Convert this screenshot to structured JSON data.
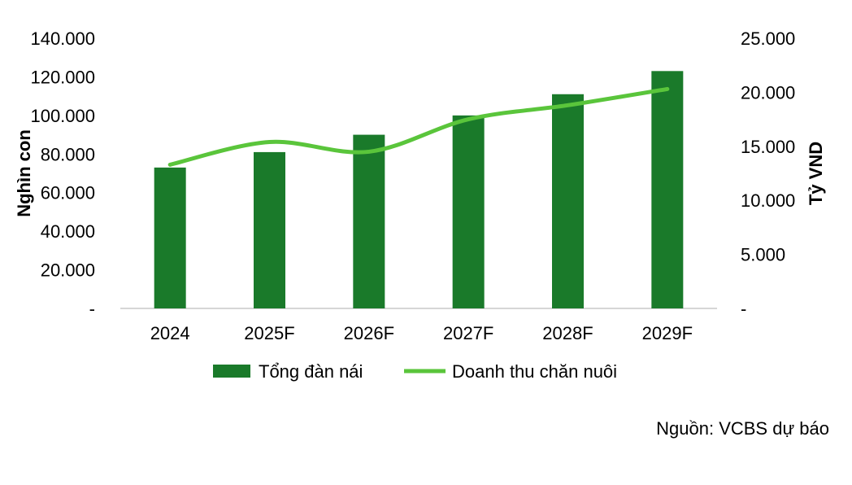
{
  "chart_data": {
    "type": "bar",
    "categories": [
      "2024",
      "2025F",
      "2026F",
      "2027F",
      "2028F",
      "2029F"
    ],
    "series": [
      {
        "name": "Tổng đàn nái",
        "type": "bar",
        "axis": "left",
        "values": [
          73000,
          81000,
          90000,
          100000,
          111000,
          123000
        ]
      },
      {
        "name": "Doanh thu chăn nuôi",
        "type": "line",
        "axis": "right",
        "values": [
          13300,
          15400,
          14500,
          17500,
          18800,
          20300
        ]
      }
    ],
    "ylabel": "Nghìn con",
    "y2label": "Tỷ VND",
    "ylim": [
      0,
      140000
    ],
    "y2lim": [
      0,
      25000
    ],
    "yticks": [
      "-",
      "20.000",
      "40.000",
      "60.000",
      "80.000",
      "100.000",
      "120.000",
      "140.000"
    ],
    "y2ticks": [
      "-",
      "5.000",
      "10.000",
      "15.000",
      "20.000",
      "25.000"
    ],
    "legend_position": "bottom",
    "colors": {
      "bar": "#1a7a2a",
      "line": "#5ac53b",
      "axis": "#c8c8c8"
    }
  },
  "source": "Nguồn: VCBS dự báo"
}
